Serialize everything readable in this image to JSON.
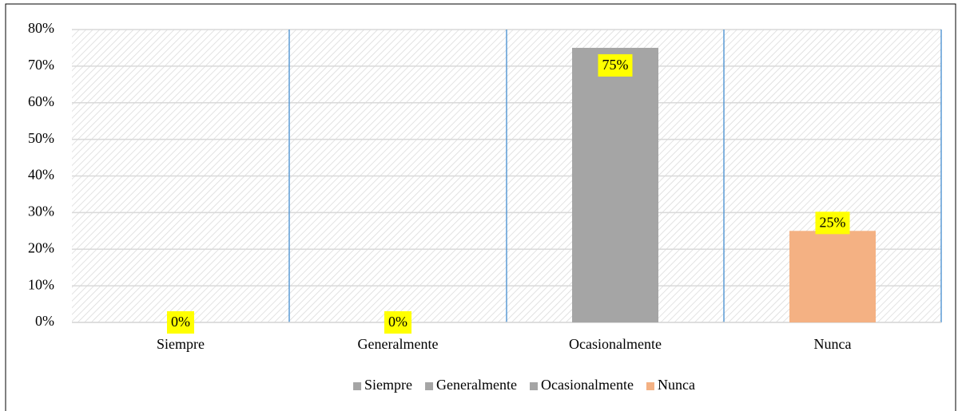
{
  "chart_data": {
    "type": "bar",
    "categories": [
      "Siempre",
      "Generalmente",
      "Ocasionalmente",
      "Nunca"
    ],
    "values": [
      0,
      0,
      75,
      25
    ],
    "value_labels": [
      "0%",
      "0%",
      "75%",
      "25%"
    ],
    "colors": [
      "#a5a5a5",
      "#a5a5a5",
      "#a5a5a5",
      "#f4b183"
    ],
    "ylim": [
      0,
      80
    ],
    "yticks": [
      {
        "value": 0,
        "label": "0%"
      },
      {
        "value": 10,
        "label": "10%"
      },
      {
        "value": 20,
        "label": "20%"
      },
      {
        "value": 30,
        "label": "30%"
      },
      {
        "value": 40,
        "label": "40%"
      },
      {
        "value": 50,
        "label": "50%"
      },
      {
        "value": 60,
        "label": "60%"
      },
      {
        "value": 70,
        "label": "70%"
      },
      {
        "value": 80,
        "label": "80%"
      }
    ],
    "grid": true,
    "legend": "bottom"
  }
}
